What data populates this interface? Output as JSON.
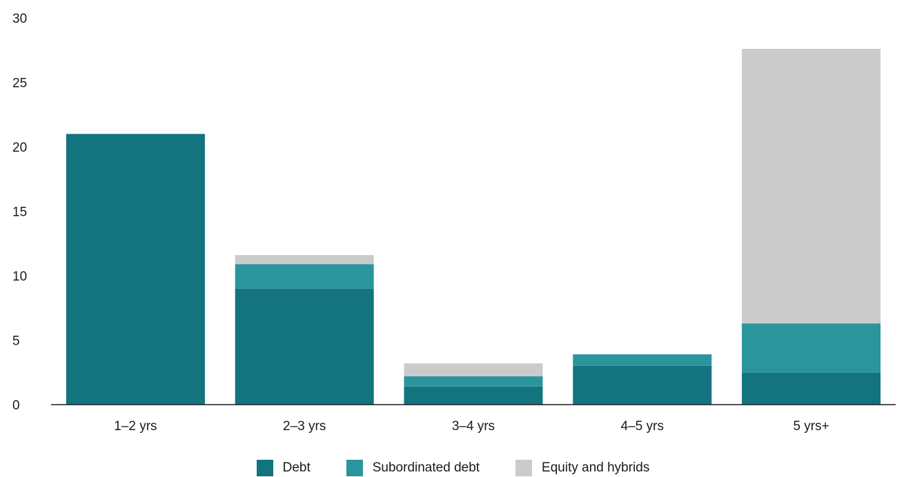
{
  "chart_data": {
    "type": "bar",
    "stacked": true,
    "categories": [
      "1–2 yrs",
      "2–3 yrs",
      "3–4 yrs",
      "4–5 yrs",
      "5 yrs+"
    ],
    "series": [
      {
        "name": "Debt",
        "color": "#13737e",
        "values": [
          21.0,
          9.0,
          1.4,
          3.0,
          2.5
        ]
      },
      {
        "name": "Subordinated debt",
        "color": "#2a959c",
        "values": [
          0,
          1.9,
          0.8,
          0.9,
          3.8
        ]
      },
      {
        "name": "Equity and hybrids",
        "color": "#cbcbcb",
        "values": [
          0,
          0.7,
          1.0,
          0,
          21.3
        ]
      }
    ],
    "ylim": [
      0,
      30
    ],
    "yticks": [
      "0",
      "5",
      "10",
      "15",
      "20",
      "25",
      "30"
    ],
    "grid": false,
    "legend": "bottom-center"
  }
}
